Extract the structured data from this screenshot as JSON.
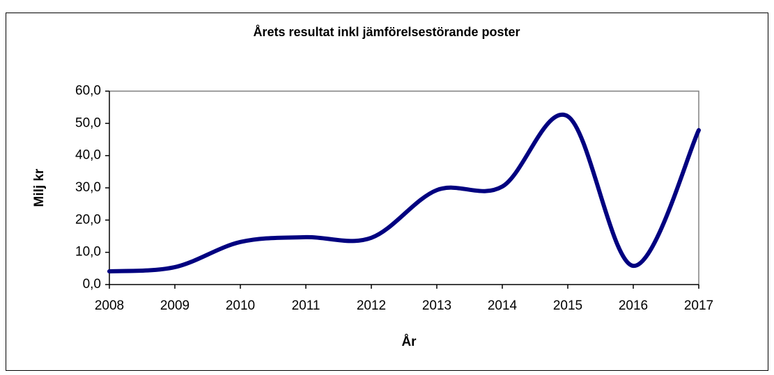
{
  "chart_data": {
    "type": "line",
    "title": "Årets resultat inkl jämförelsestörande poster",
    "x_label": "År",
    "y_label": "Milj kr",
    "categories": [
      "2008",
      "2009",
      "2010",
      "2011",
      "2012",
      "2013",
      "2014",
      "2015",
      "2016",
      "2017"
    ],
    "series": [
      {
        "name": "Årets resultat",
        "color": "#000080",
        "values": [
          4.1,
          5.4,
          13.2,
          14.7,
          14.5,
          29.3,
          30.4,
          52.2,
          5.8,
          47.9
        ]
      }
    ],
    "ylim": [
      0,
      60
    ],
    "yticks": [
      {
        "value": 0,
        "label": "0,0"
      },
      {
        "value": 10,
        "label": "10,0"
      },
      {
        "value": 20,
        "label": "20,0"
      },
      {
        "value": 30,
        "label": "30,0"
      },
      {
        "value": 40,
        "label": "40,0"
      },
      {
        "value": 50,
        "label": "50,0"
      },
      {
        "value": 60,
        "label": "60,0"
      }
    ],
    "smooth": true,
    "grid": false
  }
}
